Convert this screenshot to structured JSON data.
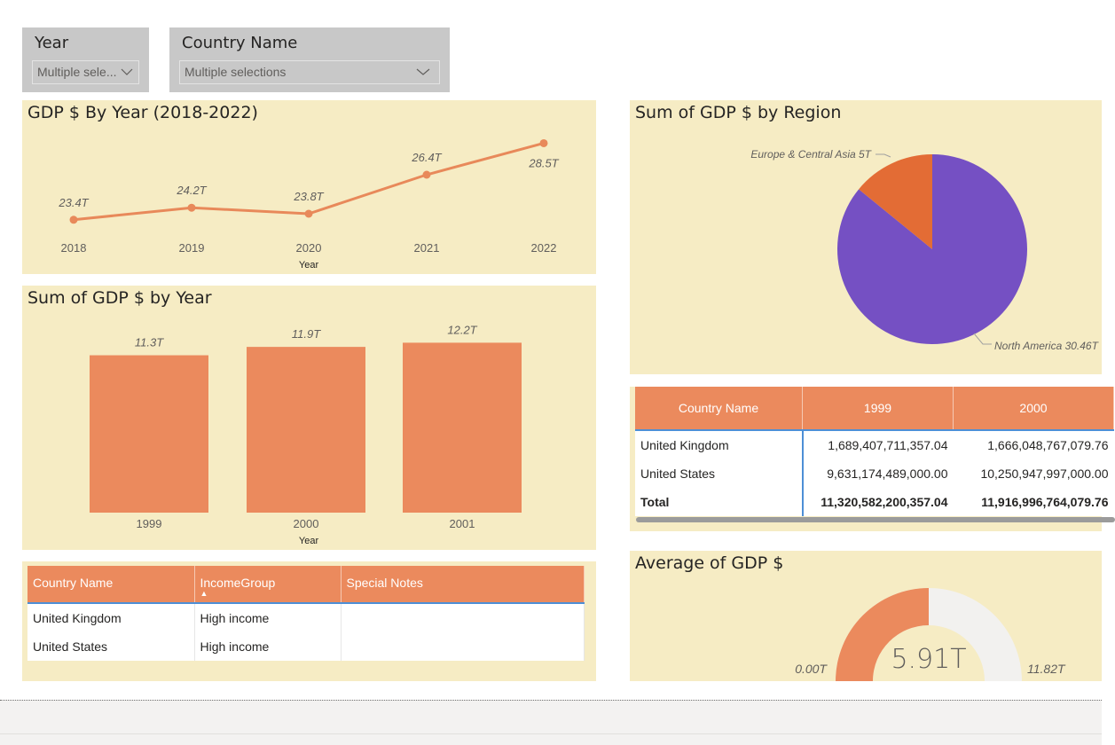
{
  "slicers": {
    "year": {
      "title": "Year",
      "value": "Multiple sele..."
    },
    "country": {
      "title": "Country Name",
      "value": "Multiple selections"
    }
  },
  "line_chart": {
    "title": "GDP $ By Year (2018-2022)",
    "xlabel": "Year",
    "labels": [
      "23.4T",
      "24.2T",
      "23.8T",
      "26.4T",
      "28.5T"
    ]
  },
  "bar_chart": {
    "title": "Sum of GDP $ by Year",
    "xlabel": "Year",
    "labels": [
      "11.3T",
      "11.9T",
      "12.2T"
    ]
  },
  "pie_chart": {
    "title": "Sum of GDP $ by Region",
    "labels": [
      "Europe & Central Asia 5T",
      "North America 30.46T"
    ]
  },
  "gauge": {
    "title": "Average of GDP $",
    "value_label": "5.91T",
    "min_label": "0.00T",
    "max_label": "11.82T"
  },
  "income_table": {
    "headers": [
      "Country Name",
      "IncomeGroup",
      "Special Notes"
    ],
    "rows": [
      [
        "United Kingdom",
        "High income",
        ""
      ],
      [
        "United States",
        "High income",
        ""
      ]
    ]
  },
  "matrix": {
    "headers": [
      "Country Name",
      "1999",
      "2000"
    ],
    "rows": [
      [
        "United Kingdom",
        "1,689,407,711,357.04",
        "1,666,048,767,079.76"
      ],
      [
        "United States",
        "9,631,174,489,000.00",
        "10,250,947,997,000.00"
      ]
    ],
    "total": [
      "Total",
      "11,320,582,200,357.04",
      "11,916,996,764,079.76"
    ]
  },
  "colors": {
    "panel": "#f6ecc4",
    "accent": "#eb8a5d",
    "line": "#e8895a",
    "pie_north_america": "#7550c3",
    "pie_europe": "#e36c35",
    "gauge_track": "#f2f1ef"
  },
  "chart_data": [
    {
      "type": "line",
      "title": "GDP $ By Year (2018-2022)",
      "xlabel": "Year",
      "ylabel": "",
      "x": [
        2018,
        2019,
        2020,
        2021,
        2022
      ],
      "series": [
        {
          "values": [
            23.4,
            24.2,
            23.8,
            26.4,
            28.5
          ]
        }
      ],
      "unit": "T",
      "ylim": [
        22.5,
        29
      ],
      "grid": false
    },
    {
      "type": "bar",
      "title": "Sum of GDP $ by Year",
      "xlabel": "Year",
      "ylabel": "",
      "categories": [
        "1999",
        "2000",
        "2001"
      ],
      "values": [
        11.3,
        11.9,
        12.2
      ],
      "unit": "T",
      "ylim": [
        0,
        13.5
      ],
      "grid": false
    },
    {
      "type": "pie",
      "title": "Sum of GDP $ by Region",
      "categories": [
        "Europe & Central Asia",
        "North America"
      ],
      "values": [
        5,
        30.46
      ],
      "unit": "T"
    },
    {
      "type": "gauge",
      "title": "Average of GDP $",
      "value": 5.91,
      "min": 0,
      "max": 11.82,
      "unit": "T"
    }
  ]
}
